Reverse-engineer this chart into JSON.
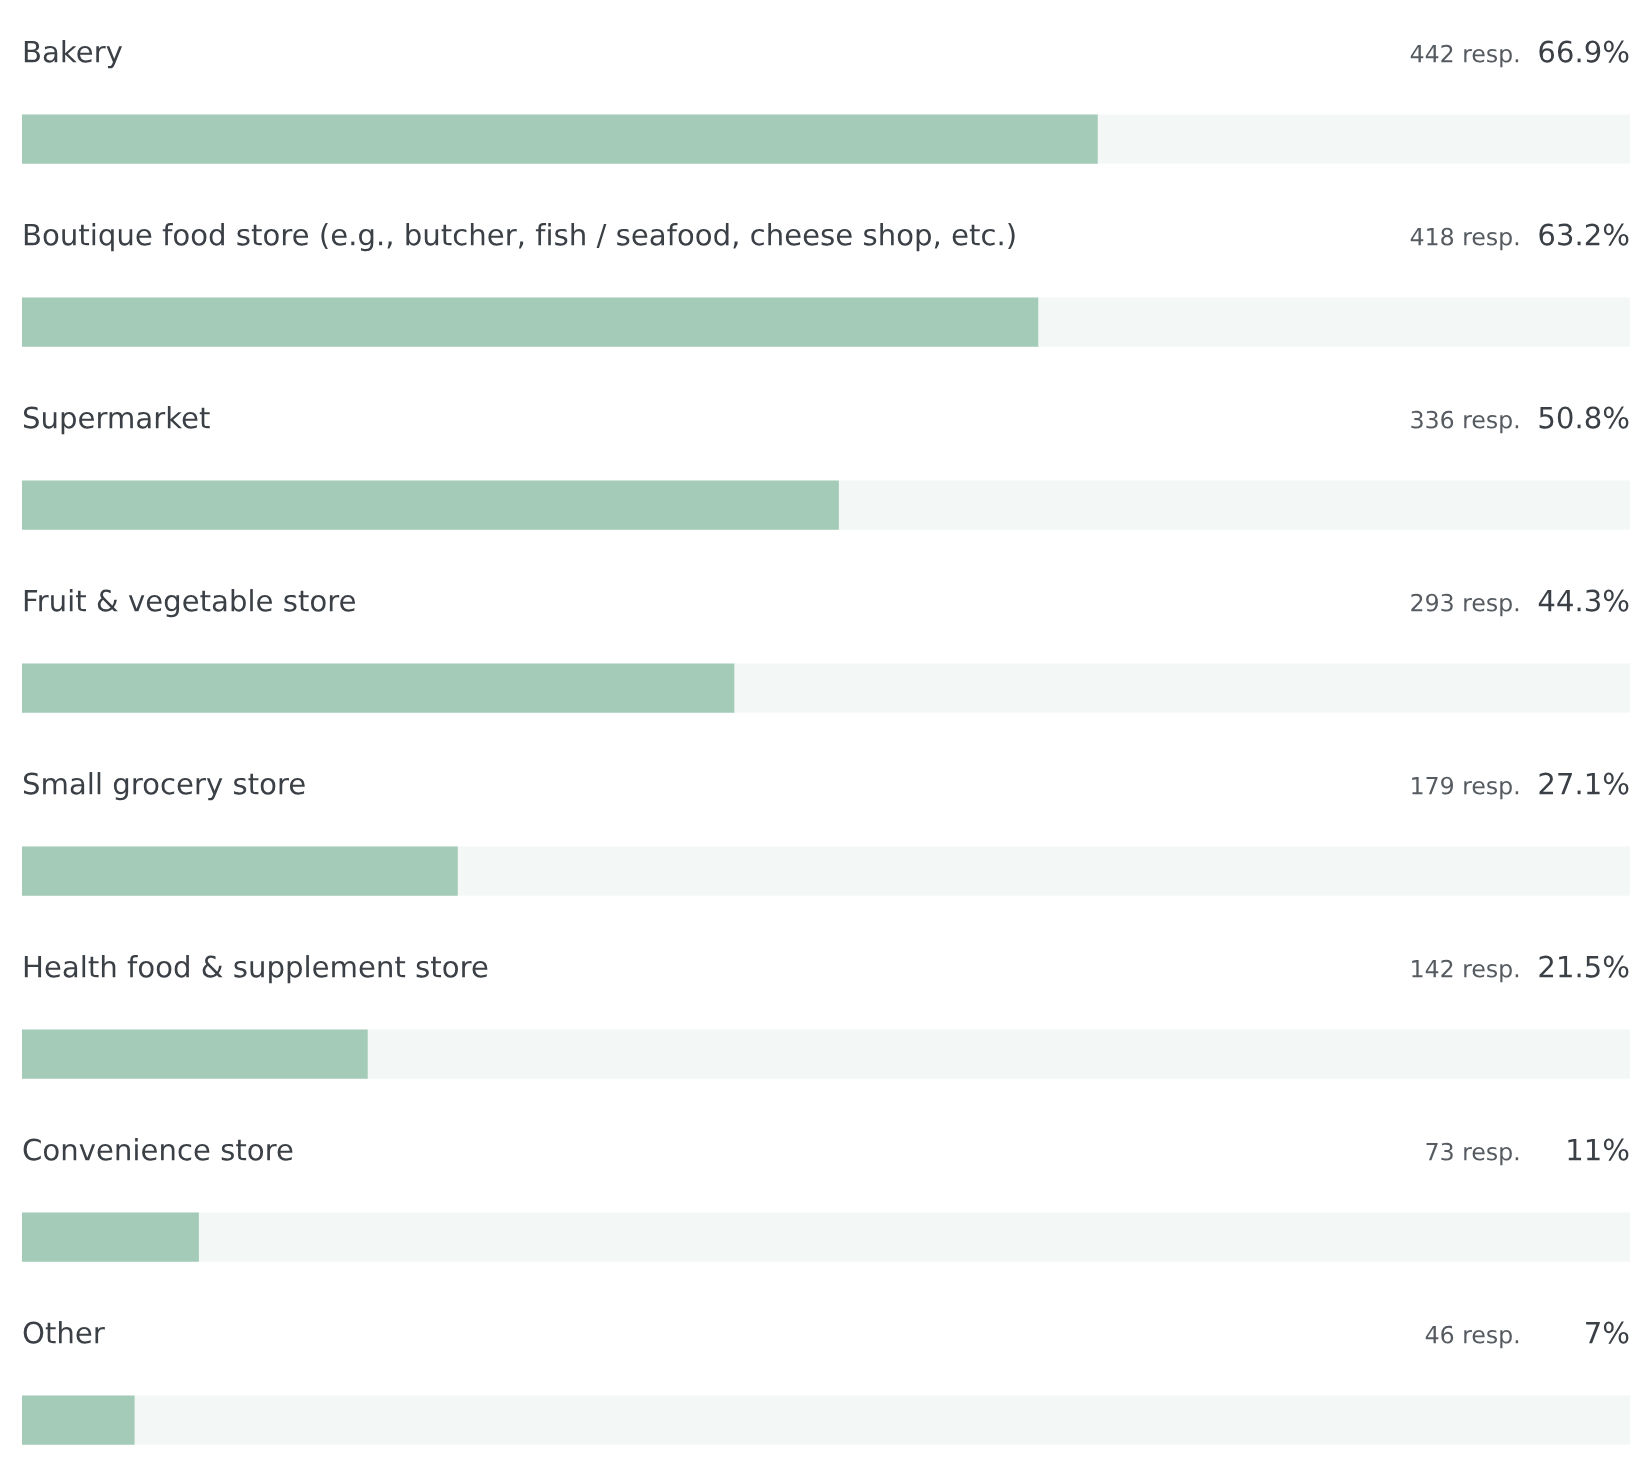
{
  "chart_data": {
    "type": "bar",
    "orientation": "horizontal",
    "categories": [
      "Bakery",
      "Boutique food store (e.g., butcher, fish / seafood, cheese shop, etc.)",
      "Supermarket",
      "Fruit & vegetable store",
      "Small grocery store",
      "Health food & supplement store",
      "Convenience store",
      "Other"
    ],
    "values": [
      66.9,
      63.2,
      50.8,
      44.3,
      27.1,
      21.5,
      11,
      7
    ],
    "value_labels": [
      "66.9%",
      "63.2%",
      "50.8%",
      "44.3%",
      "27.1%",
      "21.5%",
      "11%",
      "7%"
    ],
    "color": "#a3cbb8",
    "xlim": [
      0,
      100
    ],
    "annotations": [
      "442 resp.",
      "418 resp.",
      "336 resp.",
      "293 resp.",
      "179 resp.",
      "142 resp.",
      "73 resp.",
      "46 resp."
    ]
  }
}
